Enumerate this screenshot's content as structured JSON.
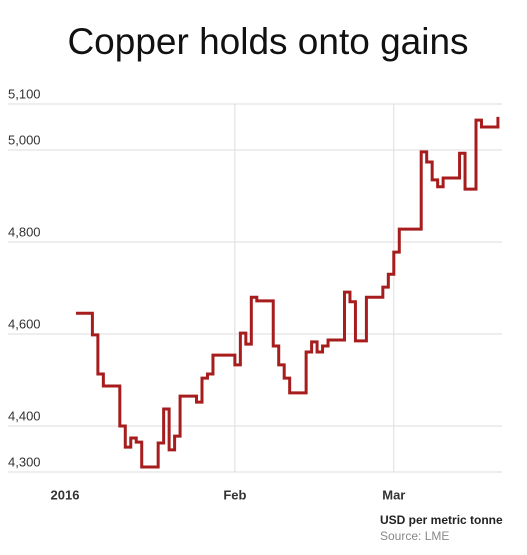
{
  "chart_data": {
    "type": "step-line",
    "title": "Copper holds onto gains",
    "y_unit_note": "USD per metric tonne",
    "source": "Source: LME",
    "categories": [
      "2016",
      null,
      null,
      null,
      null,
      null,
      null,
      null,
      null,
      null,
      null,
      null,
      null,
      null,
      null,
      null,
      null,
      null,
      null,
      null,
      null,
      null,
      null,
      null,
      null,
      null,
      null,
      null,
      null,
      null,
      null,
      "Feb",
      null,
      null,
      null,
      null,
      null,
      null,
      null,
      null,
      null,
      null,
      null,
      null,
      null,
      null,
      null,
      null,
      null,
      null,
      null,
      null,
      null,
      null,
      null,
      null,
      null,
      null,
      null,
      null,
      "Mar",
      null,
      null,
      null,
      null,
      null,
      null,
      null,
      null,
      null,
      null,
      null,
      null,
      null,
      null,
      null,
      null,
      null,
      null,
      null
    ],
    "series": [
      {
        "name": "Copper",
        "color": "#a71d1d",
        "values": [
          null,
          null,
          4645,
          4645,
          4645,
          4598,
          4513,
          4487,
          4487,
          4487,
          4400,
          4354,
          4374,
          4365,
          4311,
          4311,
          4311,
          4363,
          4437,
          4348,
          4378,
          4465,
          4465,
          4465,
          4452,
          4504,
          4513,
          4554,
          4554,
          4554,
          4554,
          4533,
          4602,
          4578,
          4680,
          4672,
          4672,
          4672,
          4574,
          4533,
          4504,
          4472,
          4472,
          4472,
          4561,
          4583,
          4561,
          4574,
          4587,
          4587,
          4587,
          4691,
          4670,
          4585,
          4585,
          4680,
          4680,
          4680,
          4702,
          4730,
          4778,
          4828,
          4828,
          4828,
          4828,
          4996,
          4974,
          4935,
          4920,
          4939,
          4939,
          4939,
          4993,
          4915,
          4915,
          5065,
          5050,
          5050,
          5050,
          5072
        ]
      }
    ],
    "ylim": [
      4300,
      5100
    ],
    "yticks": [
      {
        "value": 4300,
        "label": "4,300"
      },
      {
        "value": 4400,
        "label": "4,400"
      },
      {
        "value": 4600,
        "label": "4,600"
      },
      {
        "value": 4800,
        "label": "4,800"
      },
      {
        "value": 5000,
        "label": "5,000"
      },
      {
        "value": 5100,
        "label": "5,100"
      }
    ],
    "grid": true
  }
}
